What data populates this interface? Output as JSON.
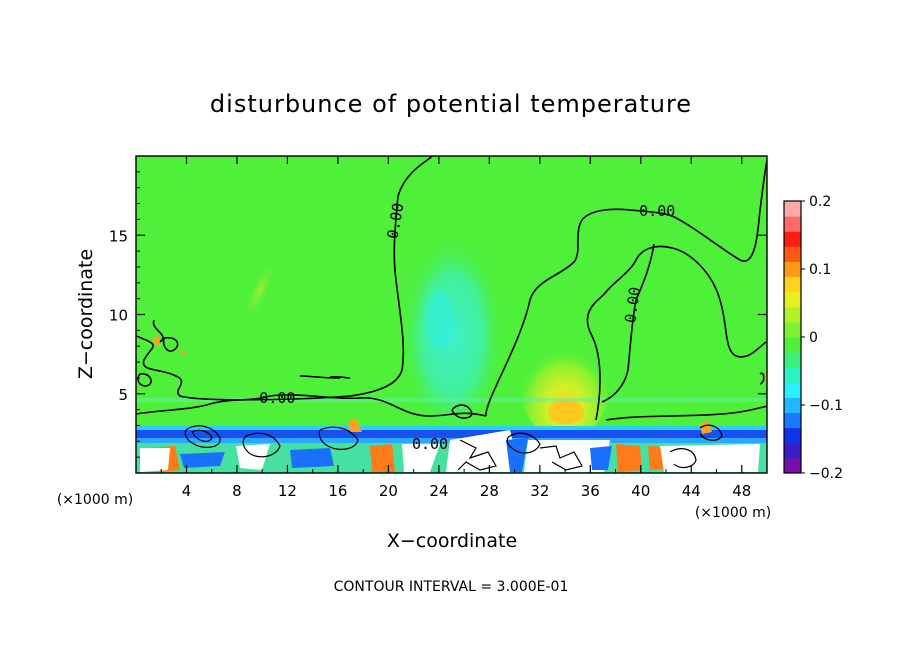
{
  "chart_data": {
    "type": "heatmap",
    "title": "disturbunce of potential temperature",
    "xlabel": "X−coordinate",
    "ylabel": "Z−coordinate",
    "x_unit": "(×1000 m)",
    "x_unit_right": "(×1000 m)",
    "xlim": [
      0,
      50
    ],
    "ylim": [
      0,
      20
    ],
    "x_ticks": [
      4,
      8,
      12,
      16,
      20,
      24,
      28,
      32,
      36,
      40,
      44,
      48
    ],
    "x_tick_labels": [
      "4",
      "8",
      "12",
      "16",
      "20",
      "24",
      "28",
      "32",
      "36",
      "40",
      "44",
      "48"
    ],
    "y_ticks": [
      5,
      10,
      15
    ],
    "y_tick_labels": [
      "5",
      "10",
      "15"
    ],
    "colorbar": {
      "range": [
        -0.2,
        0.2
      ],
      "ticks": [
        0.2,
        0.1,
        0,
        -0.1,
        -0.2
      ],
      "tick_labels": [
        "0.2",
        "0.1",
        "0",
        "−0.1",
        "−0.2"
      ],
      "colors": [
        "#7a0fa8",
        "#3a1cc8",
        "#1234e6",
        "#1a78ff",
        "#22b8ff",
        "#28f0ff",
        "#2ef0c0",
        "#38f07a",
        "#4ef03a",
        "#7ef032",
        "#b4f028",
        "#e6f020",
        "#ffd21e",
        "#ff9a18",
        "#ff5a14",
        "#ff1e14",
        "#ff6a6a",
        "#ffa8a8"
      ]
    },
    "contour_labels": [
      {
        "text": "0.00",
        "x": 20.6,
        "z": 15.9,
        "angle": -80
      },
      {
        "text": "0.00",
        "x": 41.3,
        "z": 16.5,
        "angle": 0
      },
      {
        "text": "0.00",
        "x": 39.4,
        "z": 10.6,
        "angle": -82
      },
      {
        "text": "0.00",
        "x": 11.2,
        "z": 4.7,
        "angle": 0
      },
      {
        "text": "0.00",
        "x": 23.3,
        "z": 1.8,
        "angle": 0
      }
    ],
    "contour_interval_text": "CONTOUR INTERVAL =  3.000E-01"
  }
}
